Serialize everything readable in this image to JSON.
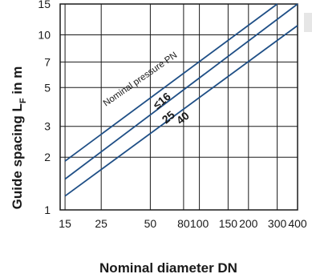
{
  "chart_data": {
    "type": "line",
    "xscale": "log",
    "yscale": "log",
    "xlim": [
      14,
      400
    ],
    "ylim": [
      1,
      15
    ],
    "grid": true,
    "xlabel": "Nominal diameter DN",
    "ylabel": "Guide spacing L",
    "ylabel_subscript": "F",
    "ylabel_suffix": " in m",
    "annotation": "Nominal pressure PN",
    "xticks": [
      15,
      25,
      50,
      80,
      100,
      150,
      200,
      300,
      400
    ],
    "yticks": [
      1,
      2,
      3,
      5,
      7,
      10,
      15
    ],
    "series": [
      {
        "name": "≤16",
        "x": [
          15,
          300
        ],
        "y": [
          1.9,
          15
        ]
      },
      {
        "name": "25",
        "x": [
          15,
          400
        ],
        "y": [
          1.5,
          15
        ]
      },
      {
        "name": "40",
        "x": [
          15,
          400
        ],
        "y": [
          1.2,
          11.3
        ]
      }
    ],
    "colors": {
      "line": "#1f4f86",
      "grid": "#1a1a1a",
      "text": "#1a1a1a"
    }
  }
}
